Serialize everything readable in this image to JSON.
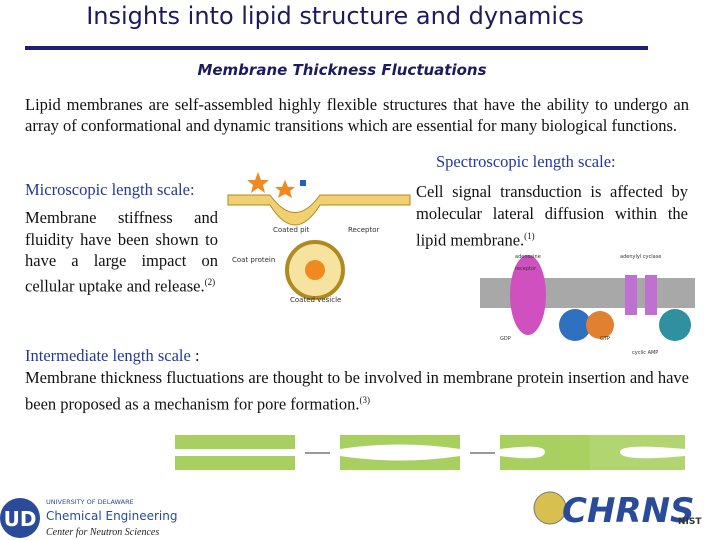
{
  "header": {
    "title": "Insights into lipid structure and dynamics",
    "subtitle": "Membrane Thickness Fluctuations"
  },
  "intro": "Lipid membranes are self-assembled highly flexible structures that have the ability to undergo an array of conformational and dynamic transitions which are essential for many biological functions.",
  "spectroscopic": {
    "heading": "Spectroscopic length scale:",
    "text": "Cell signal transduction is affected by molecular lateral diffusion within the lipid membrane.",
    "ref": "(1)"
  },
  "microscopic": {
    "heading": "Microscopic length scale:",
    "text": "Membrane stiffness and fluidity have been shown to have a large impact on cellular uptake and release.",
    "ref": "(2)"
  },
  "intermediate": {
    "heading": "Intermediate length scale",
    "punct": " :",
    "text": "Membrane thickness fluctuations are thought to be involved in membrane protein insertion and have been proposed as a mechanism for  pore formation.",
    "ref": "(3)"
  },
  "endocytosis_figure": {
    "labels": [
      "Coated pit",
      "Receptor",
      "Coat protein",
      "Coated vesicle"
    ]
  },
  "signaling_figure": {
    "labels": [
      "adenosine",
      "receptor",
      "adenylyl cyclase",
      "GDP",
      "GTP",
      "cyclic AMP"
    ]
  },
  "footer": {
    "university": "UNIVERSITY OF DELAWARE",
    "department": "Chemical Engineering",
    "center": "Center for Neutron Sciences",
    "logo": "CHRNS",
    "nist": "NIST"
  }
}
